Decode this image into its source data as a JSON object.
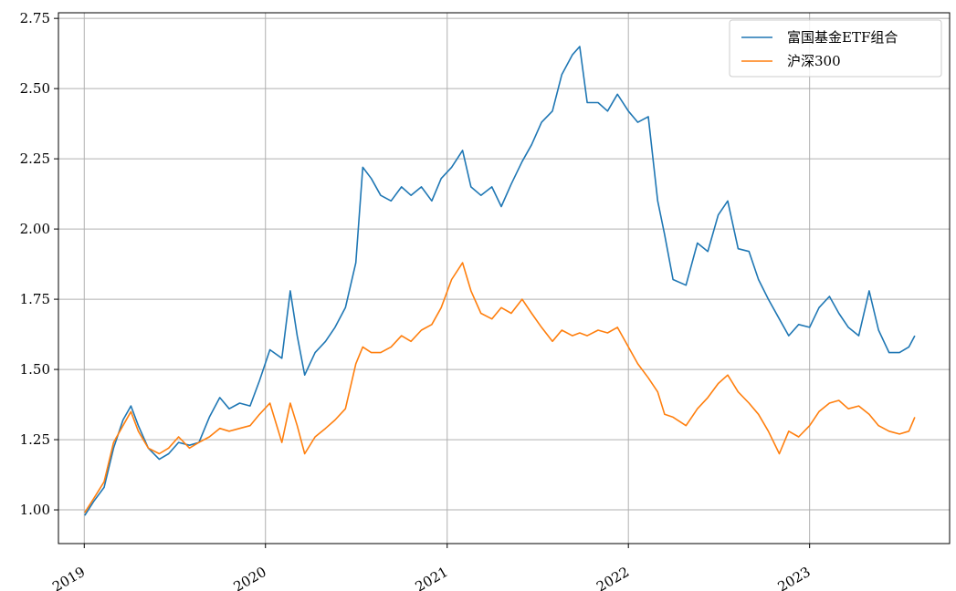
{
  "chart_data": {
    "type": "line",
    "title": "",
    "xlabel": "",
    "ylabel": "",
    "x_ticks": [
      "2019",
      "2020",
      "2021",
      "2022",
      "2023"
    ],
    "y_ticks": [
      "1.00",
      "1.25",
      "1.50",
      "1.75",
      "2.00",
      "2.25",
      "2.50",
      "2.75"
    ],
    "xlim": [
      "2018-11-10",
      "2023-10-10"
    ],
    "ylim": [
      0.88,
      2.77
    ],
    "grid": true,
    "legend_position": "top-right",
    "series": [
      {
        "name": "富国基金ETF组合",
        "color": "#1f77b4",
        "x": [
          "2019-01-02",
          "2019-01-20",
          "2019-02-10",
          "2019-03-01",
          "2019-03-20",
          "2019-04-05",
          "2019-04-20",
          "2019-05-10",
          "2019-06-01",
          "2019-06-20",
          "2019-07-10",
          "2019-08-01",
          "2019-08-20",
          "2019-09-10",
          "2019-10-01",
          "2019-10-20",
          "2019-11-10",
          "2019-12-01",
          "2019-12-20",
          "2020-01-10",
          "2020-02-03",
          "2020-02-20",
          "2020-03-05",
          "2020-03-20",
          "2020-04-10",
          "2020-05-01",
          "2020-05-20",
          "2020-06-10",
          "2020-07-01",
          "2020-07-15",
          "2020-08-01",
          "2020-08-20",
          "2020-09-10",
          "2020-10-01",
          "2020-10-20",
          "2020-11-10",
          "2020-12-01",
          "2020-12-20",
          "2021-01-10",
          "2021-02-01",
          "2021-02-18",
          "2021-03-10",
          "2021-04-01",
          "2021-04-20",
          "2021-05-10",
          "2021-06-01",
          "2021-06-20",
          "2021-07-10",
          "2021-08-01",
          "2021-08-20",
          "2021-09-10",
          "2021-09-25",
          "2021-10-10",
          "2021-11-01",
          "2021-11-20",
          "2021-12-10",
          "2022-01-01",
          "2022-01-20",
          "2022-02-10",
          "2022-03-01",
          "2022-03-15",
          "2022-04-01",
          "2022-04-27",
          "2022-05-20",
          "2022-06-10",
          "2022-07-01",
          "2022-07-20",
          "2022-08-10",
          "2022-09-01",
          "2022-09-20",
          "2022-10-10",
          "2022-11-01",
          "2022-11-20",
          "2022-12-10",
          "2023-01-01",
          "2023-01-20",
          "2023-02-10",
          "2023-03-01",
          "2023-03-20",
          "2023-04-10",
          "2023-05-01",
          "2023-05-20",
          "2023-06-10",
          "2023-07-01",
          "2023-07-20",
          "2023-08-01"
        ],
        "y": [
          0.98,
          1.03,
          1.08,
          1.22,
          1.32,
          1.37,
          1.3,
          1.22,
          1.18,
          1.2,
          1.24,
          1.23,
          1.24,
          1.33,
          1.4,
          1.36,
          1.38,
          1.37,
          1.46,
          1.57,
          1.54,
          1.78,
          1.62,
          1.48,
          1.56,
          1.6,
          1.65,
          1.72,
          1.88,
          2.22,
          2.18,
          2.12,
          2.1,
          2.15,
          2.12,
          2.15,
          2.1,
          2.18,
          2.22,
          2.28,
          2.15,
          2.12,
          2.15,
          2.08,
          2.16,
          2.24,
          2.3,
          2.38,
          2.42,
          2.55,
          2.62,
          2.65,
          2.45,
          2.45,
          2.42,
          2.48,
          2.42,
          2.38,
          2.4,
          2.1,
          1.98,
          1.82,
          1.8,
          1.95,
          1.92,
          2.05,
          2.1,
          1.93,
          1.92,
          1.82,
          1.75,
          1.68,
          1.62,
          1.66,
          1.65,
          1.72,
          1.76,
          1.7,
          1.65,
          1.62,
          1.78,
          1.64,
          1.56,
          1.56,
          1.58,
          1.62
        ]
      },
      {
        "name": "沪深300",
        "color": "#ff7f0e",
        "x": [
          "2019-01-02",
          "2019-01-20",
          "2019-02-10",
          "2019-03-01",
          "2019-03-20",
          "2019-04-05",
          "2019-04-20",
          "2019-05-10",
          "2019-06-01",
          "2019-06-20",
          "2019-07-10",
          "2019-08-01",
          "2019-08-20",
          "2019-09-10",
          "2019-10-01",
          "2019-10-20",
          "2019-11-10",
          "2019-12-01",
          "2019-12-20",
          "2020-01-10",
          "2020-02-03",
          "2020-02-20",
          "2020-03-05",
          "2020-03-20",
          "2020-04-10",
          "2020-05-01",
          "2020-05-20",
          "2020-06-10",
          "2020-07-01",
          "2020-07-15",
          "2020-08-01",
          "2020-08-20",
          "2020-09-10",
          "2020-10-01",
          "2020-10-20",
          "2020-11-10",
          "2020-12-01",
          "2020-12-20",
          "2021-01-10",
          "2021-02-01",
          "2021-02-18",
          "2021-03-10",
          "2021-04-01",
          "2021-04-20",
          "2021-05-10",
          "2021-06-01",
          "2021-06-20",
          "2021-07-10",
          "2021-08-01",
          "2021-08-20",
          "2021-09-10",
          "2021-09-25",
          "2021-10-10",
          "2021-11-01",
          "2021-11-20",
          "2021-12-10",
          "2022-01-01",
          "2022-01-20",
          "2022-02-10",
          "2022-03-01",
          "2022-03-15",
          "2022-04-01",
          "2022-04-27",
          "2022-05-20",
          "2022-06-10",
          "2022-07-01",
          "2022-07-20",
          "2022-08-10",
          "2022-09-01",
          "2022-09-20",
          "2022-10-10",
          "2022-11-01",
          "2022-11-20",
          "2022-12-10",
          "2023-01-01",
          "2023-01-20",
          "2023-02-10",
          "2023-03-01",
          "2023-03-20",
          "2023-04-10",
          "2023-05-01",
          "2023-05-20",
          "2023-06-10",
          "2023-07-01",
          "2023-07-20",
          "2023-08-01"
        ],
        "y": [
          0.99,
          1.04,
          1.1,
          1.24,
          1.3,
          1.35,
          1.28,
          1.22,
          1.2,
          1.22,
          1.26,
          1.22,
          1.24,
          1.26,
          1.29,
          1.28,
          1.29,
          1.3,
          1.34,
          1.38,
          1.24,
          1.38,
          1.3,
          1.2,
          1.26,
          1.29,
          1.32,
          1.36,
          1.52,
          1.58,
          1.56,
          1.56,
          1.58,
          1.62,
          1.6,
          1.64,
          1.66,
          1.72,
          1.82,
          1.88,
          1.78,
          1.7,
          1.68,
          1.72,
          1.7,
          1.75,
          1.7,
          1.65,
          1.6,
          1.64,
          1.62,
          1.63,
          1.62,
          1.64,
          1.63,
          1.65,
          1.58,
          1.52,
          1.47,
          1.42,
          1.34,
          1.33,
          1.3,
          1.36,
          1.4,
          1.45,
          1.48,
          1.42,
          1.38,
          1.34,
          1.28,
          1.2,
          1.28,
          1.26,
          1.3,
          1.35,
          1.38,
          1.39,
          1.36,
          1.37,
          1.34,
          1.3,
          1.28,
          1.27,
          1.28,
          1.33
        ]
      }
    ]
  }
}
